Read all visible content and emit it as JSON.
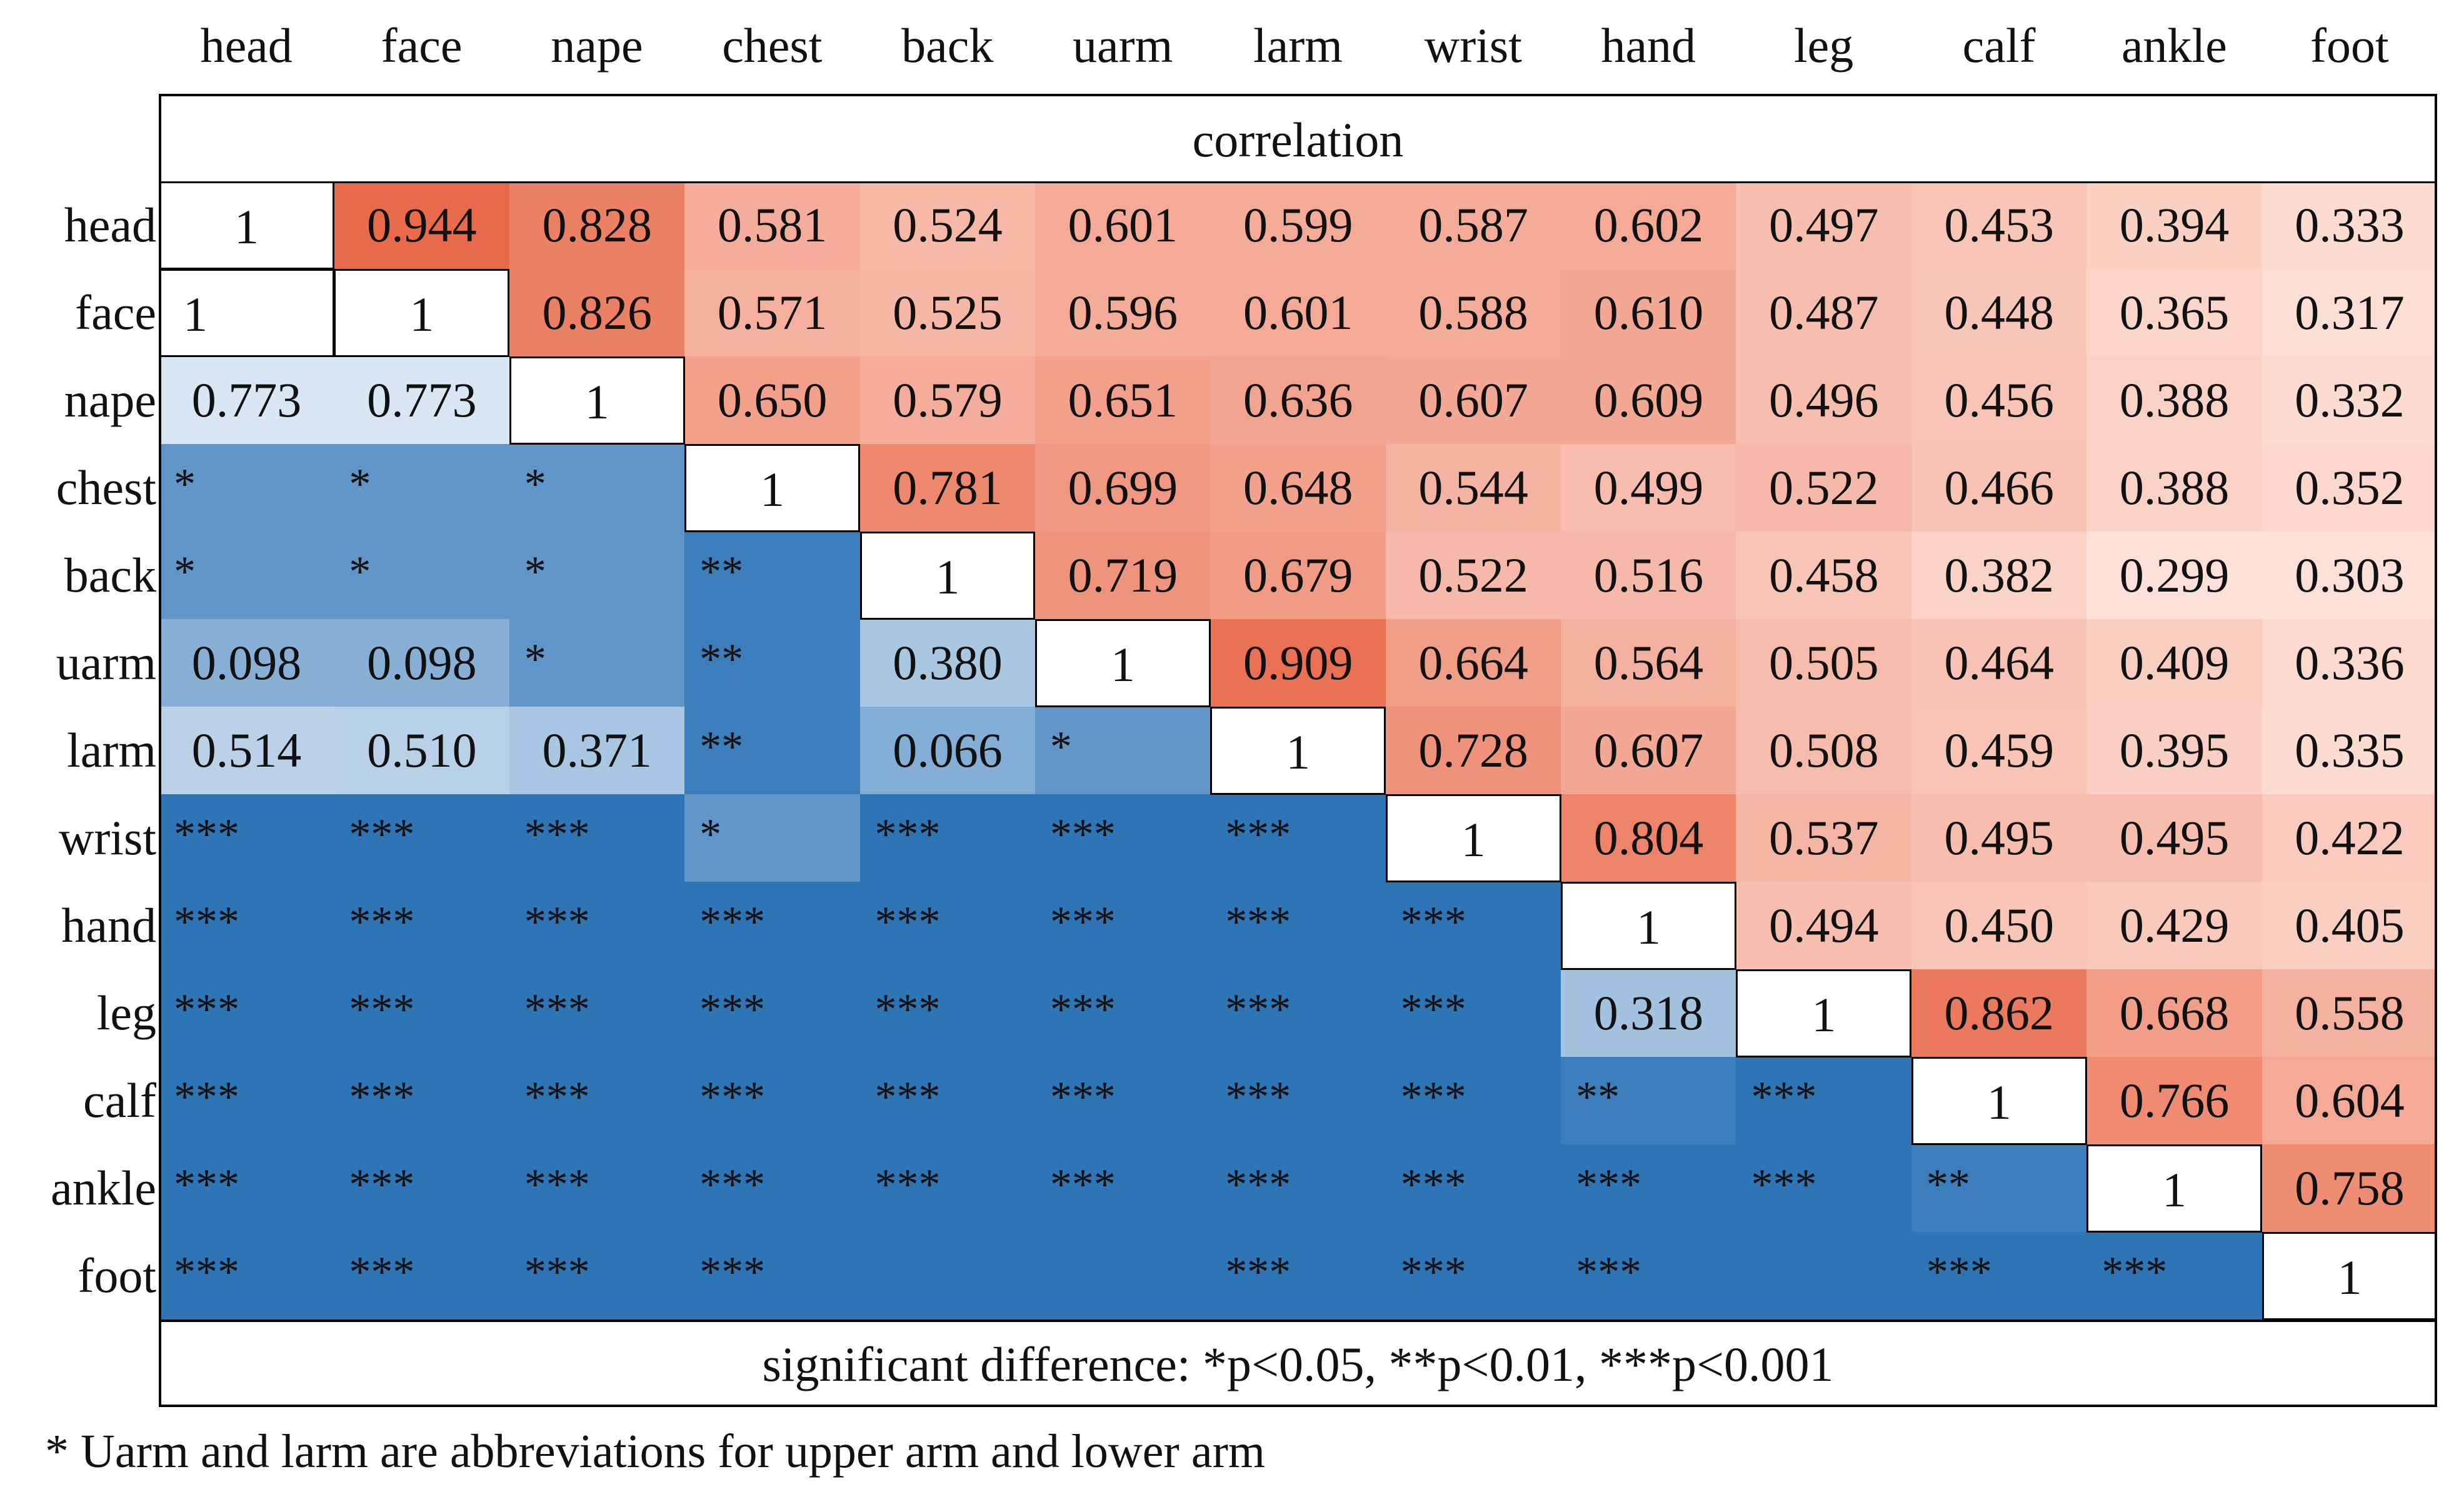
{
  "chart_data": {
    "type": "heatmap",
    "title": "correlation",
    "labels": [
      "head",
      "face",
      "nape",
      "chest",
      "back",
      "uarm",
      "larm",
      "wrist",
      "hand",
      "leg",
      "calf",
      "ankle",
      "foot"
    ],
    "upper_triangle": "correlation coefficient",
    "lower_triangle": "significant difference",
    "cells": [
      [
        "1",
        "0.944",
        "0.828",
        "0.581",
        "0.524",
        "0.601",
        "0.599",
        "0.587",
        "0.602",
        "0.497",
        "0.453",
        "0.394",
        "0.333"
      ],
      [
        "1",
        "1",
        "0.826",
        "0.571",
        "0.525",
        "0.596",
        "0.601",
        "0.588",
        "0.610",
        "0.487",
        "0.448",
        "0.365",
        "0.317"
      ],
      [
        "0.773",
        "0.773",
        "1",
        "0.650",
        "0.579",
        "0.651",
        "0.636",
        "0.607",
        "0.609",
        "0.496",
        "0.456",
        "0.388",
        "0.332"
      ],
      [
        "*",
        "*",
        "*",
        "1",
        "0.781",
        "0.699",
        "0.648",
        "0.544",
        "0.499",
        "0.522",
        "0.466",
        "0.388",
        "0.352"
      ],
      [
        "*",
        "*",
        "*",
        "**",
        "1",
        "0.719",
        "0.679",
        "0.522",
        "0.516",
        "0.458",
        "0.382",
        "0.299",
        "0.303"
      ],
      [
        "0.098",
        "0.098",
        "*",
        "**",
        "0.380",
        "1",
        "0.909",
        "0.664",
        "0.564",
        "0.505",
        "0.464",
        "0.409",
        "0.336"
      ],
      [
        "0.514",
        "0.510",
        "0.371",
        "**",
        "0.066",
        "*",
        "1",
        "0.728",
        "0.607",
        "0.508",
        "0.459",
        "0.395",
        "0.335"
      ],
      [
        "***",
        "***",
        "***",
        "*",
        "***",
        "***",
        "***",
        "1",
        "0.804",
        "0.537",
        "0.495",
        "0.495",
        "0.422"
      ],
      [
        "***",
        "***",
        "***",
        "***",
        "***",
        "***",
        "***",
        "***",
        "1",
        "0.494",
        "0.450",
        "0.429",
        "0.405"
      ],
      [
        "***",
        "***",
        "***",
        "***",
        "***",
        "***",
        "***",
        "***",
        "0.318",
        "1",
        "0.862",
        "0.668",
        "0.558"
      ],
      [
        "***",
        "***",
        "***",
        "***",
        "***",
        "***",
        "***",
        "***",
        "**",
        "***",
        "1",
        "0.766",
        "0.604"
      ],
      [
        "***",
        "***",
        "***",
        "***",
        "***",
        "***",
        "***",
        "***",
        "***",
        "***",
        "**",
        "1",
        "0.758"
      ],
      [
        "***",
        "***",
        "***",
        "***",
        "",
        "",
        "***",
        "***",
        "***",
        "",
        "***",
        "***",
        "1"
      ]
    ],
    "legend": "significant difference: *p<0.05, **p<0.01, ***p<0.001",
    "footnote": "* Uarm and larm are abbreviations for upper arm and lower arm",
    "colors": {
      "positive_max": "#e8694a",
      "positive_min": "#fde1d8",
      "significant": "#2e75b6",
      "weak": "#dce8f4",
      "border": "#000000"
    }
  }
}
